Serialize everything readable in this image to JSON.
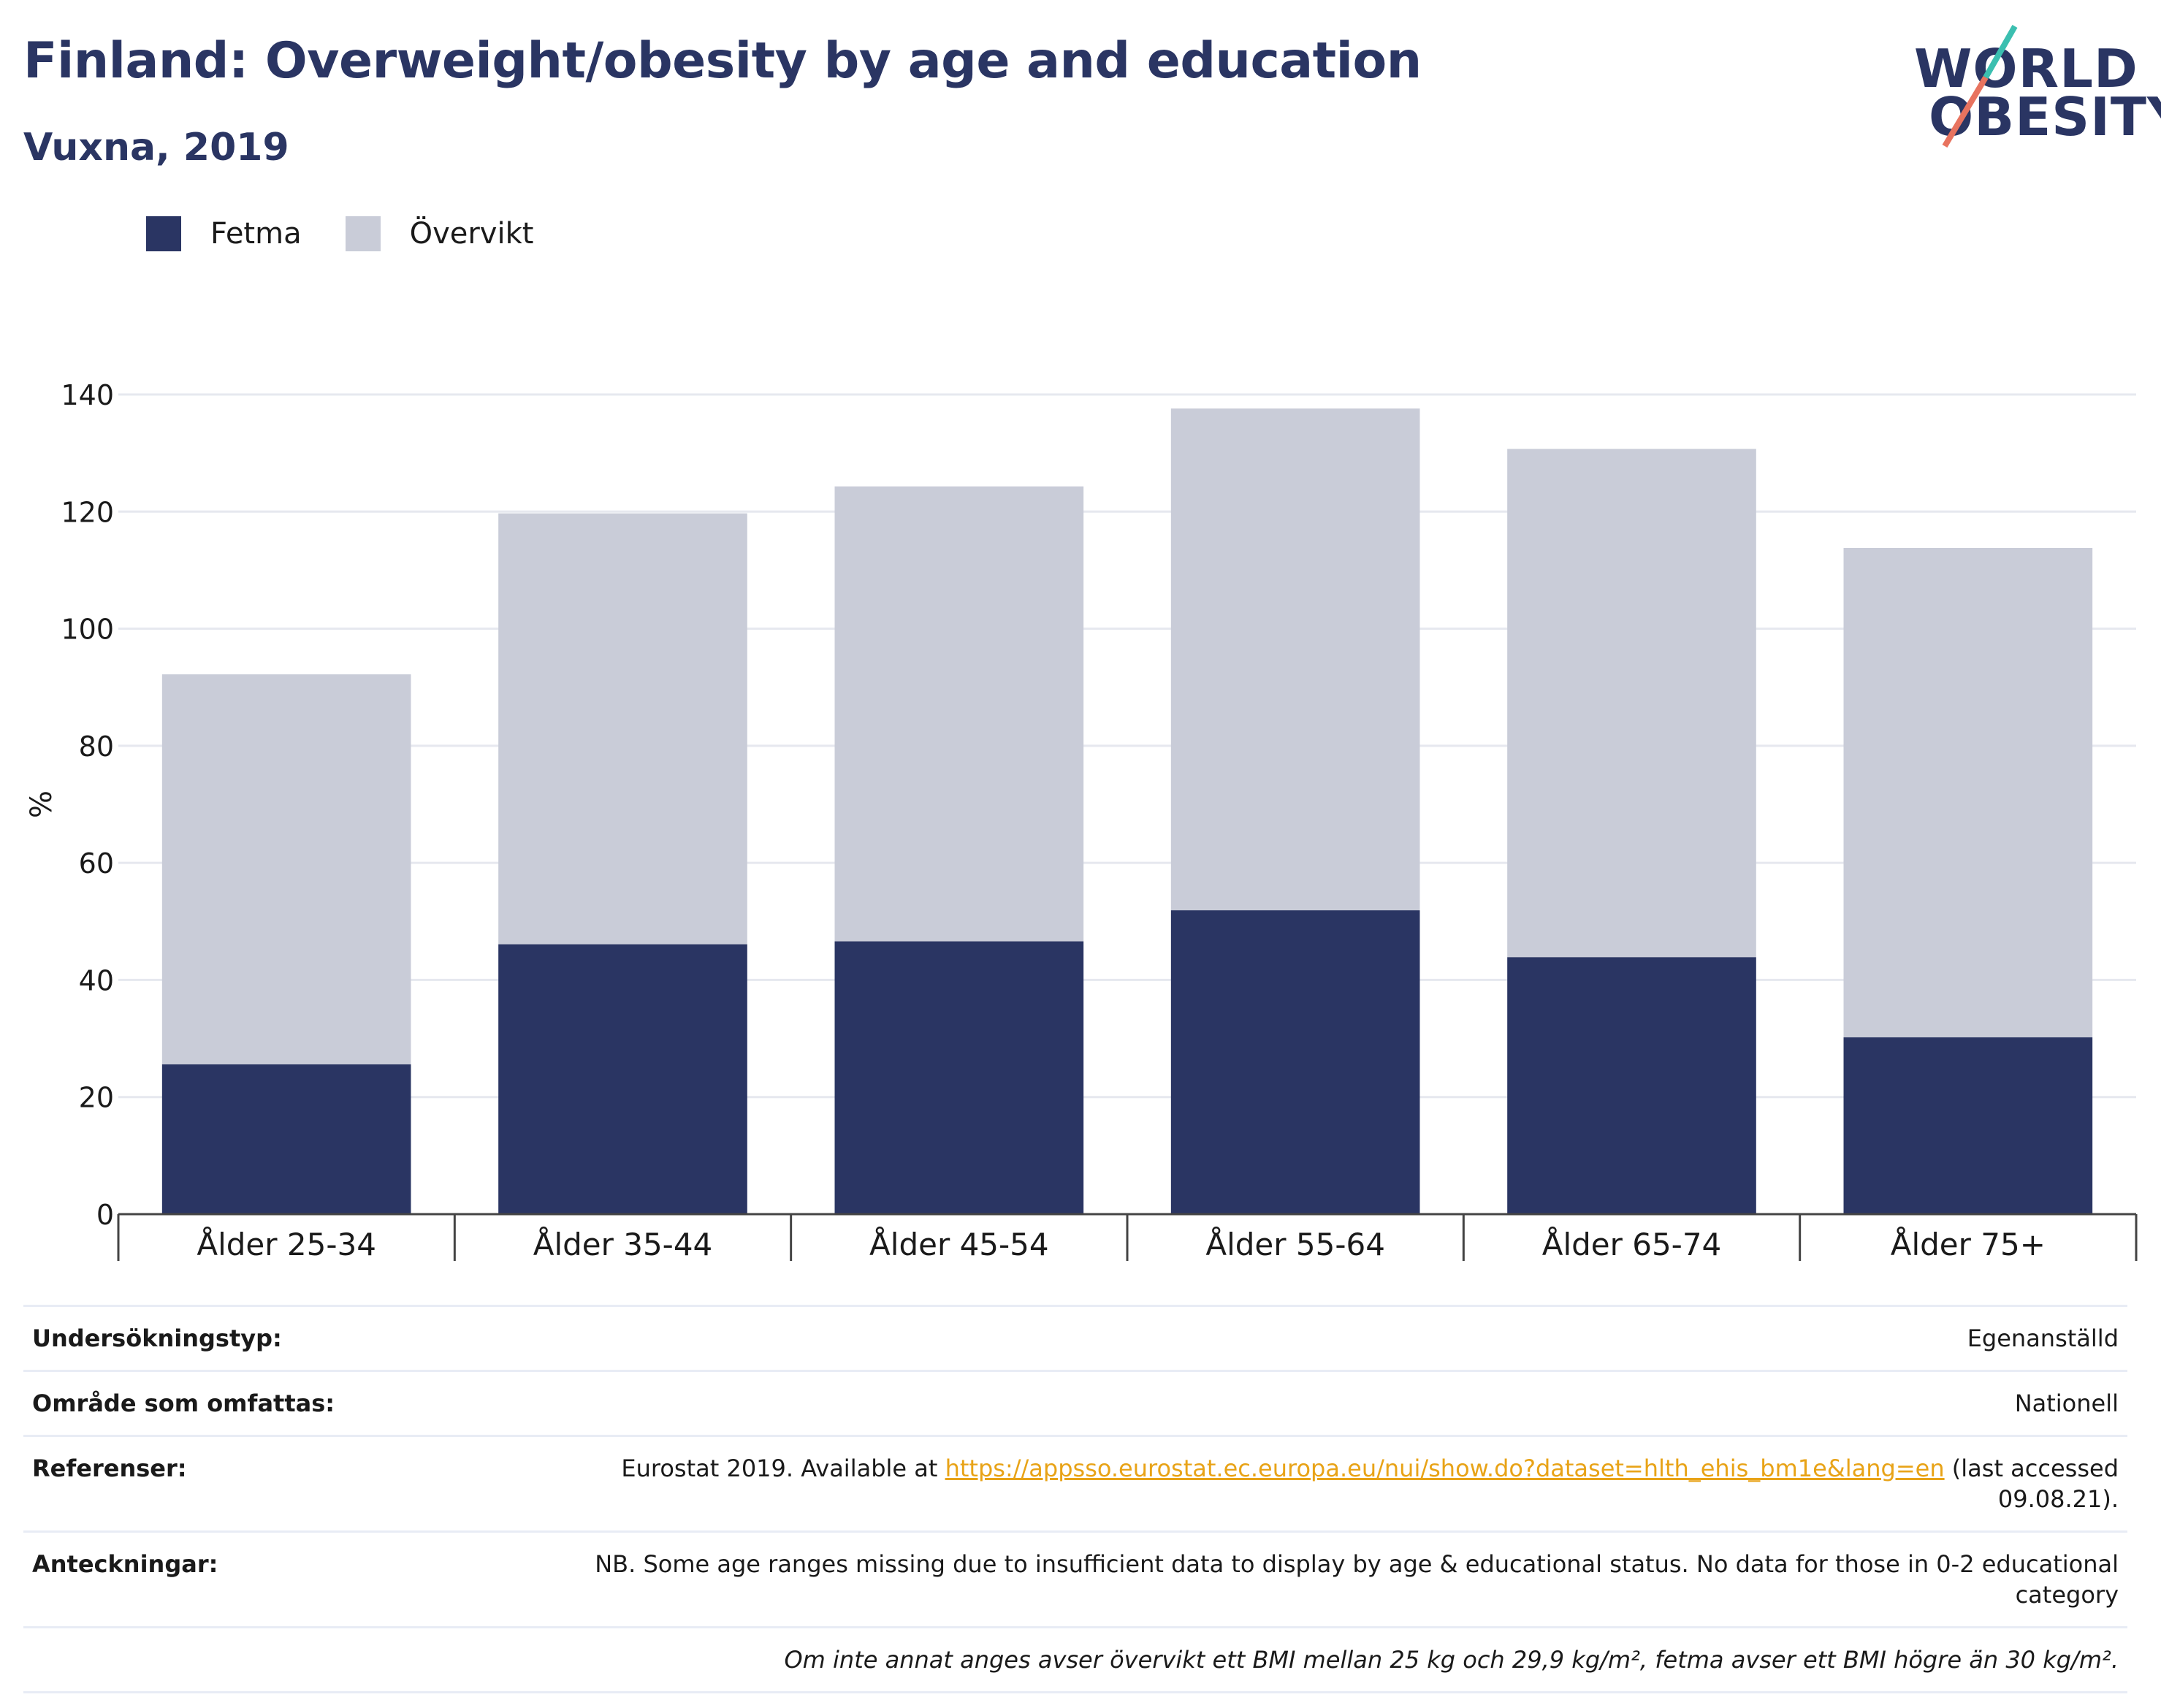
{
  "header": {
    "title": "Finland: Overweight/obesity by age and education",
    "subtitle": "Vuxna, 2019"
  },
  "logo": {
    "line1": "WORLD",
    "line2": "OBESITY"
  },
  "colors": {
    "fetma": "#2a3563",
    "overvikt": "#c9ccd8",
    "accent_teal": "#3bbfb0",
    "accent_coral": "#e8735f",
    "link": "#e8a317"
  },
  "chart_data": {
    "type": "bar",
    "stacked": true,
    "categories": [
      "Ålder 25-34",
      "Ålder 35-44",
      "Ålder 45-54",
      "Ålder 55-64",
      "Ålder 65-74",
      "Ålder 75+"
    ],
    "series": [
      {
        "name": "Fetma",
        "values": [
          25.6,
          46.1,
          46.6,
          51.9,
          43.9,
          30.2
        ]
      },
      {
        "name": "Övervikt",
        "values": [
          66.6,
          73.6,
          77.7,
          85.7,
          86.8,
          83.6
        ]
      }
    ],
    "ylabel": "%",
    "ylim": [
      0,
      140
    ],
    "yticks": [
      0,
      20,
      40,
      60,
      80,
      100,
      120,
      140
    ],
    "grid": true,
    "legend_position": "top-left"
  },
  "info": {
    "rows": [
      {
        "label": "Undersökningstyp:",
        "value": "Egenanställd"
      },
      {
        "label": "Område som omfattas:",
        "value": "Nationell"
      },
      {
        "label": "Referenser:",
        "value_prefix": "Eurostat 2019. Available at ",
        "link": "https://appsso.eurostat.ec.europa.eu/nui/show.do?dataset=hlth_ehis_bm1e&lang=en",
        "value_suffix": " (last accessed 09.08.21)."
      },
      {
        "label": "Anteckningar:",
        "value": "NB. Some age ranges missing due to insufficient data to display by age & educational status. No data for those in 0-2 educational category"
      }
    ],
    "footnote": "Om inte annat anges avser övervikt ett BMI mellan 25 kg och 29,9 kg/m², fetma avser ett BMI högre än 30 kg/m²."
  }
}
